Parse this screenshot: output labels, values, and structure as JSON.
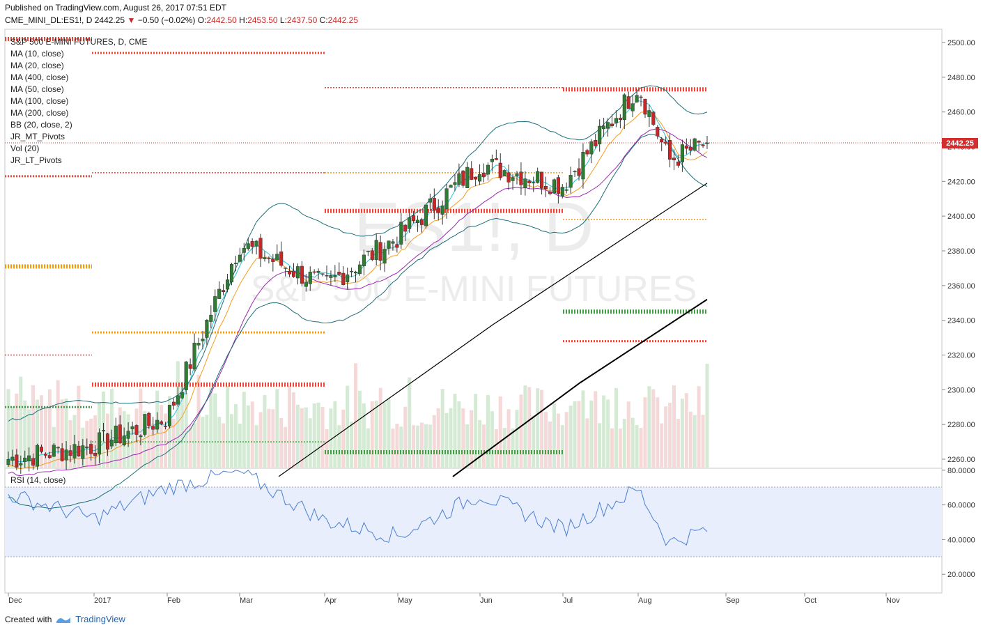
{
  "header": {
    "published": "Published on TradingView.com, August 26, 2017 07:51 EDT",
    "symbol": "CME_MINI_DL:ES1!, D",
    "last": "2442.25",
    "change_arrow": "▼",
    "change": "−0.50 (−0.02%)",
    "o_label": "O:",
    "o_val": "2442.50",
    "h_label": "H:",
    "h_val": "2453.50",
    "l_label": "L:",
    "l_val": "2437.50",
    "c_label": "C:",
    "c_val": "2442.25"
  },
  "legend": {
    "title": "S&P 500 E-MINI FUTURES, D, CME",
    "studies": [
      "MA (10, close)",
      "MA (20, close)",
      "MA (400, close)",
      "MA (50, close)",
      "MA (100, close)",
      "MA (200, close)",
      "BB (20, close, 2)",
      "JR_MT_Pivots",
      "Vol (20)",
      "JR_LT_Pivots"
    ]
  },
  "watermark": {
    "line1": "ES1!, D",
    "line2": "S&P 500 E-MINI FUTURES"
  },
  "price_label": "2442.25",
  "rsi": {
    "label": "RSI (14, close)"
  },
  "footer": {
    "created_with": "Created with",
    "brand": "TradingView"
  },
  "colors": {
    "up": "#2e7d32",
    "down": "#c62828",
    "ma10": "#26c6da",
    "ma20": "#f59b1d",
    "ma50": "#9c27b0",
    "ma100": "#000000",
    "ma200": "#000000",
    "bb": "#1b6e78",
    "pivot_red": "#f44336",
    "pivot_orange": "#ff9800",
    "pivot_green": "#43a047",
    "rsi": "#4a7fd4",
    "rsi_band": "#e8eefb"
  },
  "chart_data": [
    {
      "type": "candlestick",
      "title": "S&P 500 E-MINI FUTURES, D, CME",
      "x_ticks": [
        "Dec",
        "2017",
        "Feb",
        "Mar",
        "Apr",
        "May",
        "Jun",
        "Jul",
        "Aug",
        "Sep",
        "Oct",
        "Nov"
      ],
      "y_ticks": [
        "2260.00",
        "2280.00",
        "2300.00",
        "2320.00",
        "2340.00",
        "2360.00",
        "2380.00",
        "2400.00",
        "2420.00",
        "2440.00",
        "2460.00",
        "2480.00",
        "2500.00"
      ],
      "ylim": [
        2254,
        2505
      ],
      "last_price": 2442.25,
      "close_series_points": [
        [
          "Dec",
          2260
        ],
        [
          "2017",
          2268
        ],
        [
          "Feb",
          2284
        ],
        [
          "Mar",
          2384
        ],
        [
          "Apr",
          2360
        ],
        [
          "May",
          2388
        ],
        [
          "Jun",
          2430
        ],
        [
          "Jul",
          2418
        ],
        [
          "Aug",
          2475
        ],
        [
          "Aug 11",
          2432
        ],
        [
          "Aug 25",
          2442.25
        ]
      ],
      "ma_series": [
        {
          "name": "MA (10, close)",
          "start": 2262,
          "end": 2445
        },
        {
          "name": "MA (20, close)",
          "start": 2265,
          "end": 2456
        },
        {
          "name": "MA (50, close)",
          "start": 2250,
          "end": 2448
        },
        {
          "name": "MA (100, close)",
          "start": 2250,
          "end": 2419
        },
        {
          "name": "MA (200, close)",
          "start": 2250,
          "end": 2352
        }
      ],
      "pivot_levels": [
        {
          "price": 2502,
          "color": "red"
        },
        {
          "price": 2494,
          "color": "red"
        },
        {
          "price": 2474,
          "color": "red"
        },
        {
          "price": 2473,
          "color": "red"
        },
        {
          "price": 2423,
          "color": "red"
        },
        {
          "price": 2425,
          "color": "red"
        },
        {
          "price": 2403,
          "color": "red"
        },
        {
          "price": 2328,
          "color": "red"
        },
        {
          "price": 2320,
          "color": "red"
        },
        {
          "price": 2303,
          "color": "red"
        },
        {
          "price": 2264,
          "color": "red"
        },
        {
          "price": 2398,
          "color": "orange"
        },
        {
          "price": 2371,
          "color": "orange"
        },
        {
          "price": 2333,
          "color": "orange"
        },
        {
          "price": 2425,
          "color": "orange"
        },
        {
          "price": 2345,
          "color": "green"
        },
        {
          "price": 2290,
          "color": "green"
        },
        {
          "price": 2270,
          "color": "green"
        },
        {
          "price": 2264,
          "color": "green"
        }
      ]
    },
    {
      "type": "line",
      "title": "RSI (14, close)",
      "y_ticks": [
        "20.0000",
        "40.0000",
        "60.0000",
        "80.0000"
      ],
      "ylim": [
        10,
        80
      ],
      "band": [
        30,
        70
      ],
      "points": [
        [
          "Dec",
          66
        ],
        [
          "2017",
          52
        ],
        [
          "Feb",
          70
        ],
        [
          "Mar",
          79
        ],
        [
          "Apr",
          51
        ],
        [
          "May",
          42
        ],
        [
          "Jun",
          66
        ],
        [
          "Jul",
          46
        ],
        [
          "Aug",
          69
        ],
        [
          "Aug 11",
          38
        ],
        [
          "Aug 25",
          46
        ]
      ]
    }
  ]
}
